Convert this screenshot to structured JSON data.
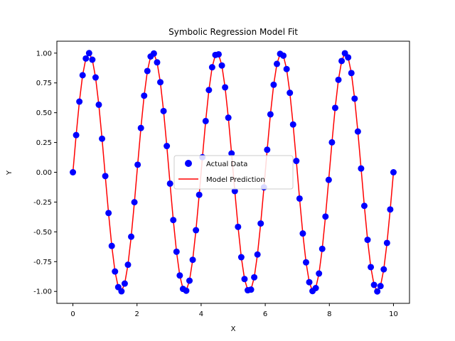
{
  "chart_data": {
    "type": "scatter",
    "title": "Symbolic Regression Model Fit",
    "xlabel": "X",
    "ylabel": "Y",
    "xlim": [
      -0.5,
      10.5
    ],
    "ylim": [
      -1.1,
      1.1
    ],
    "xticks": [
      "0",
      "2",
      "4",
      "6",
      "8",
      "10"
    ],
    "xtick_values": [
      0,
      2,
      4,
      6,
      8,
      10
    ],
    "yticks": [
      "-1.00",
      "-0.75",
      "-0.50",
      "-0.25",
      "0.00",
      "0.25",
      "0.50",
      "0.75",
      "1.00"
    ],
    "ytick_values": [
      -1,
      -0.75,
      -0.5,
      -0.25,
      0,
      0.25,
      0.5,
      0.75,
      1
    ],
    "grid": false,
    "legend_position": "center",
    "function": "sin(pi*x)",
    "x_range": [
      0,
      10
    ],
    "n_points": 100,
    "series": [
      {
        "name": "Actual Data",
        "kind": "scatter",
        "color": "#0000ff"
      },
      {
        "name": "Model Prediction",
        "kind": "line",
        "color": "#ff0000"
      }
    ]
  }
}
